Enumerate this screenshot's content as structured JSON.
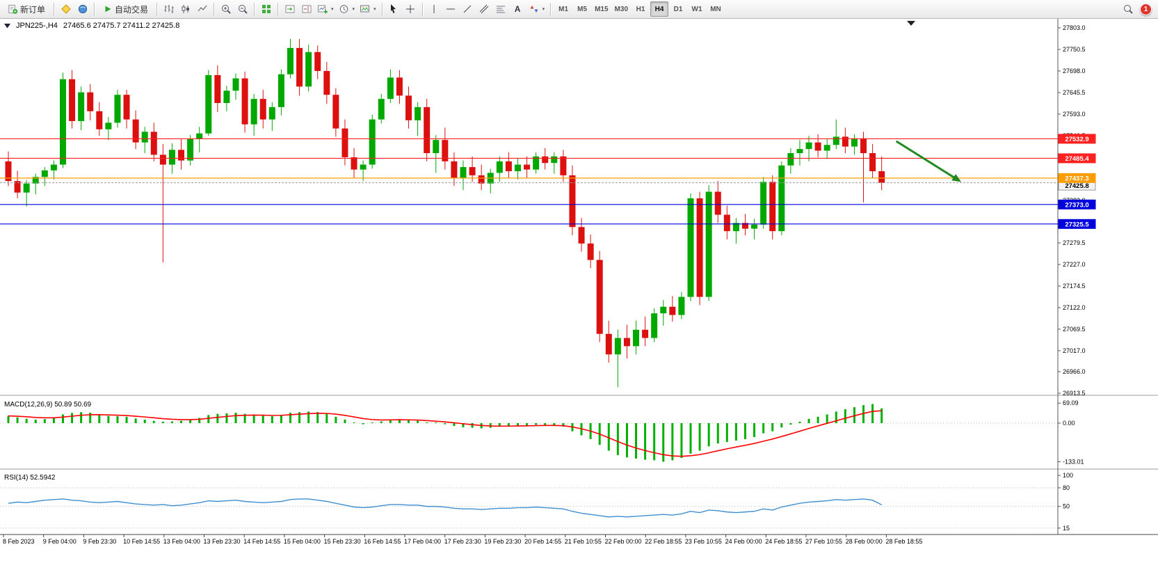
{
  "toolbar": {
    "new_order_label": "新订单",
    "autotrade_label": "自动交易",
    "text_tool_glyph": "A",
    "dropdown_glyph": "▾",
    "timeframes": [
      "M1",
      "M5",
      "M15",
      "M30",
      "H1",
      "H4",
      "D1",
      "W1",
      "MN"
    ],
    "active_timeframe": "H4",
    "notification_count": "1"
  },
  "chart": {
    "symbol_title": "JPN225-,H4",
    "ohlc_line": "27465.6 27475.7 27411.2 27425.8"
  },
  "chart_data": [
    {
      "type": "candlestick",
      "title": "JPN225-,H4",
      "ohlc_display": {
        "open": "27465.6",
        "high": "27475.7",
        "low": "27411.2",
        "close": "27425.8"
      },
      "ylim": [
        26913.5,
        27803.0
      ],
      "up_color": "#00a800",
      "down_color": "#dd1010",
      "y_ticks": [
        "27803.0",
        "27750.5",
        "27698.0",
        "27645.5",
        "27593.0",
        "27540.5",
        "27488.0",
        "27435.5",
        "27383.0",
        "27331.0",
        "27279.5",
        "27227.0",
        "27174.5",
        "27122.0",
        "27069.5",
        "27017.0",
        "26966.0",
        "26913.5"
      ],
      "x_labels": [
        "8 Feb 2023",
        "9 Feb 04:00",
        "9 Feb 23:30",
        "10 Feb 14:55",
        "13 Feb 04:00",
        "13 Feb 23:30",
        "14 Feb 14:55",
        "15 Feb 04:00",
        "15 Feb 23:30",
        "16 Feb 14:55",
        "17 Feb 04:00",
        "17 Feb 23:30",
        "19 Feb 23:30",
        "20 Feb 14:55",
        "21 Feb 10:55",
        "22 Feb 00:00",
        "22 Feb 18:55",
        "23 Feb 10:55",
        "24 Feb 00:00",
        "24 Feb 18:55",
        "27 Feb 10:55",
        "28 Feb 00:00",
        "28 Feb 18:55"
      ],
      "levels": [
        {
          "price": 27532.9,
          "label": "27532.9",
          "color": "#ff2020"
        },
        {
          "price": 27485.4,
          "label": "27485.4",
          "color": "#ff2020"
        },
        {
          "price": 27425.8,
          "label": "27425.8",
          "color": "#f2f2f2",
          "is_current": true
        },
        {
          "price": 27437.3,
          "label": "27437.3",
          "color": "#ff9c00"
        },
        {
          "price": 27373.0,
          "label": "27373.0",
          "color": "#0000dd"
        },
        {
          "price": 27325.5,
          "label": "27325.5",
          "color": "#0000dd"
        }
      ],
      "arrow": {
        "from_bar": 97.6,
        "from_price": 27527,
        "to_bar": 104.3,
        "to_price": 27434,
        "color": "#1f8a1f"
      },
      "candles": [
        [
          27478,
          27502,
          27418,
          27430
        ],
        [
          27430,
          27455,
          27388,
          27402
        ],
        [
          27402,
          27432,
          27368,
          27424
        ],
        [
          27424,
          27448,
          27398,
          27440
        ],
        [
          27440,
          27464,
          27418,
          27456
        ],
        [
          27456,
          27480,
          27434,
          27470
        ],
        [
          27470,
          27694,
          27462,
          27678
        ],
        [
          27678,
          27700,
          27558,
          27576
        ],
        [
          27576,
          27660,
          27554,
          27646
        ],
        [
          27646,
          27666,
          27578,
          27600
        ],
        [
          27600,
          27622,
          27540,
          27556
        ],
        [
          27556,
          27586,
          27530,
          27572
        ],
        [
          27572,
          27652,
          27560,
          27640
        ],
        [
          27640,
          27652,
          27558,
          27580
        ],
        [
          27580,
          27602,
          27508,
          27524
        ],
        [
          27524,
          27562,
          27498,
          27550
        ],
        [
          27550,
          27572,
          27478,
          27494
        ],
        [
          27494,
          27520,
          27232,
          27470
        ],
        [
          27470,
          27522,
          27448,
          27506
        ],
        [
          27506,
          27532,
          27458,
          27480
        ],
        [
          27480,
          27542,
          27468,
          27532
        ],
        [
          27532,
          27562,
          27500,
          27546
        ],
        [
          27546,
          27700,
          27540,
          27688
        ],
        [
          27688,
          27712,
          27598,
          27620
        ],
        [
          27620,
          27662,
          27600,
          27650
        ],
        [
          27650,
          27692,
          27628,
          27680
        ],
        [
          27680,
          27696,
          27548,
          27568
        ],
        [
          27568,
          27642,
          27540,
          27630
        ],
        [
          27630,
          27652,
          27558,
          27580
        ],
        [
          27580,
          27622,
          27552,
          27610
        ],
        [
          27610,
          27702,
          27590,
          27690
        ],
        [
          27690,
          27776,
          27680,
          27754
        ],
        [
          27754,
          27776,
          27638,
          27660
        ],
        [
          27660,
          27762,
          27648,
          27744
        ],
        [
          27744,
          27760,
          27678,
          27698
        ],
        [
          27698,
          27720,
          27618,
          27640
        ],
        [
          27640,
          27656,
          27538,
          27558
        ],
        [
          27558,
          27580,
          27468,
          27488
        ],
        [
          27488,
          27510,
          27438,
          27458
        ],
        [
          27458,
          27480,
          27430,
          27470
        ],
        [
          27470,
          27592,
          27460,
          27580
        ],
        [
          27580,
          27642,
          27570,
          27630
        ],
        [
          27630,
          27702,
          27620,
          27682
        ],
        [
          27682,
          27700,
          27618,
          27638
        ],
        [
          27638,
          27660,
          27558,
          27578
        ],
        [
          27578,
          27622,
          27540,
          27610
        ],
        [
          27610,
          27630,
          27478,
          27498
        ],
        [
          27498,
          27542,
          27450,
          27530
        ],
        [
          27530,
          27560,
          27458,
          27478
        ],
        [
          27478,
          27500,
          27418,
          27438
        ],
        [
          27438,
          27480,
          27408,
          27464
        ],
        [
          27464,
          27490,
          27428,
          27444
        ],
        [
          27444,
          27470,
          27408,
          27424
        ],
        [
          27424,
          27460,
          27400,
          27450
        ],
        [
          27450,
          27490,
          27428,
          27478
        ],
        [
          27478,
          27500,
          27438,
          27454
        ],
        [
          27454,
          27486,
          27434,
          27470
        ],
        [
          27470,
          27490,
          27438,
          27458
        ],
        [
          27458,
          27500,
          27448,
          27490
        ],
        [
          27490,
          27510,
          27458,
          27474
        ],
        [
          27474,
          27500,
          27448,
          27490
        ],
        [
          27490,
          27506,
          27428,
          27444
        ],
        [
          27444,
          27468,
          27298,
          27318
        ],
        [
          27318,
          27340,
          27258,
          27278
        ],
        [
          27278,
          27300,
          27218,
          27238
        ],
        [
          27238,
          27260,
          27038,
          27058
        ],
        [
          27058,
          27090,
          26988,
          27008
        ],
        [
          27008,
          27068,
          26928,
          27048
        ],
        [
          27048,
          27080,
          26998,
          27028
        ],
        [
          27028,
          27090,
          27008,
          27068
        ],
        [
          27068,
          27100,
          27028,
          27048
        ],
        [
          27048,
          27120,
          27038,
          27108
        ],
        [
          27108,
          27140,
          27078,
          27124
        ],
        [
          27124,
          27150,
          27088,
          27104
        ],
        [
          27104,
          27160,
          27094,
          27148
        ],
        [
          27148,
          27400,
          27138,
          27388
        ],
        [
          27388,
          27404,
          27128,
          27148
        ],
        [
          27148,
          27420,
          27138,
          27404
        ],
        [
          27404,
          27430,
          27328,
          27348
        ],
        [
          27348,
          27370,
          27288,
          27308
        ],
        [
          27308,
          27340,
          27278,
          27328
        ],
        [
          27328,
          27350,
          27298,
          27314
        ],
        [
          27314,
          27338,
          27288,
          27324
        ],
        [
          27324,
          27440,
          27314,
          27428
        ],
        [
          27428,
          27444,
          27288,
          27308
        ],
        [
          27308,
          27478,
          27298,
          27468
        ],
        [
          27468,
          27510,
          27448,
          27498
        ],
        [
          27498,
          27530,
          27468,
          27508
        ],
        [
          27508,
          27540,
          27478,
          27524
        ],
        [
          27524,
          27544,
          27488,
          27504
        ],
        [
          27504,
          27534,
          27484,
          27518
        ],
        [
          27518,
          27580,
          27508,
          27538
        ],
        [
          27538,
          27560,
          27498,
          27514
        ],
        [
          27514,
          27544,
          27494,
          27534
        ],
        [
          27534,
          27550,
          27378,
          27498
        ],
        [
          27498,
          27520,
          27438,
          27454
        ],
        [
          27454,
          27490,
          27408,
          27425.8
        ]
      ]
    },
    {
      "type": "bar",
      "name": "MACD",
      "label": "MACD(12,26,9) 50.89 50.69",
      "params": "12,26,9",
      "main_value": "50.89",
      "signal_value": "50.69",
      "histogram_color": "#00b000",
      "signal_color": "#ff0000",
      "axis_ticks": [
        {
          "v": 69.09,
          "label": "69.09"
        },
        {
          "v": 0,
          "label": "0.00"
        },
        {
          "v": -133.01,
          "label": "-133.01"
        }
      ],
      "values": [
        25,
        20,
        15,
        12,
        14,
        18,
        30,
        35,
        38,
        36,
        30,
        25,
        24,
        22,
        16,
        12,
        8,
        5,
        6,
        8,
        12,
        18,
        28,
        32,
        34,
        36,
        32,
        30,
        26,
        24,
        28,
        36,
        38,
        40,
        38,
        32,
        22,
        12,
        2,
        -4,
        0,
        6,
        12,
        14,
        10,
        8,
        2,
        0,
        -4,
        -10,
        -14,
        -16,
        -18,
        -16,
        -12,
        -10,
        -8,
        -8,
        -6,
        -6,
        -8,
        -12,
        -28,
        -42,
        -55,
        -75,
        -95,
        -110,
        -118,
        -122,
        -126,
        -128,
        -133,
        -128,
        -120,
        -105,
        -95,
        -80,
        -70,
        -65,
        -60,
        -55,
        -48,
        -35,
        -28,
        -15,
        -5,
        5,
        15,
        22,
        30,
        40,
        48,
        55,
        62,
        66,
        51
      ]
    },
    {
      "type": "line",
      "name": "RSI",
      "label": "RSI(14) 52.5942",
      "value": "52.5942",
      "line_color": "#3f8fd0",
      "ylim": [
        8,
        108
      ],
      "levels": [
        80,
        50,
        15
      ],
      "axis_ticks": [
        {
          "v": 100,
          "label": "100"
        },
        {
          "v": 80,
          "label": "80"
        },
        {
          "v": 50,
          "label": "50"
        },
        {
          "v": 15,
          "label": "15"
        }
      ],
      "values": [
        55,
        57,
        56,
        58,
        60,
        61,
        62,
        60,
        59,
        57,
        56,
        57,
        58,
        56,
        54,
        53,
        52,
        53,
        51,
        52,
        54,
        56,
        59,
        58,
        59,
        60,
        58,
        57,
        56,
        57,
        58,
        61,
        62,
        62,
        60,
        58,
        55,
        52,
        49,
        48,
        49,
        51,
        53,
        53,
        52,
        52,
        50,
        50,
        49,
        47,
        46,
        46,
        45,
        46,
        47,
        47,
        48,
        48,
        49,
        48,
        47,
        46,
        42,
        39,
        37,
        35,
        33,
        34,
        33,
        34,
        35,
        36,
        37,
        36,
        38,
        42,
        40,
        44,
        43,
        41,
        40,
        41,
        42,
        46,
        44,
        49,
        52,
        55,
        57,
        58,
        59,
        61,
        60,
        61,
        62,
        60,
        52.59
      ]
    }
  ]
}
